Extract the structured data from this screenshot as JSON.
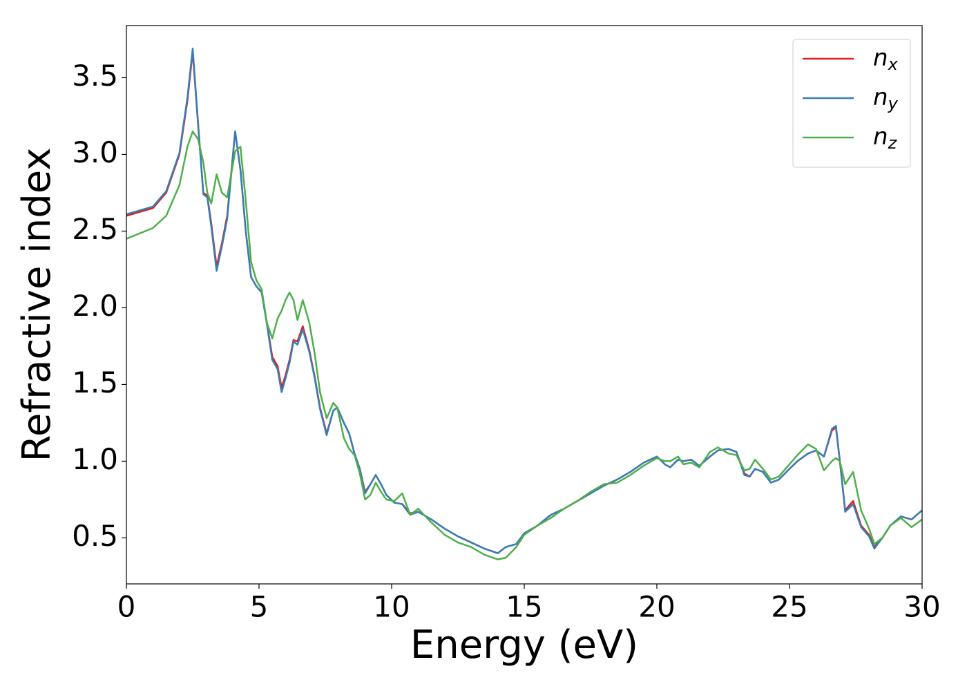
{
  "chart_data": {
    "type": "line",
    "xlabel": "Energy (eV)",
    "ylabel": "Refractive index",
    "x": [
      0,
      1,
      1.5,
      2,
      2.3,
      2.5,
      2.7,
      2.9,
      3.05,
      3.2,
      3.4,
      3.6,
      3.8,
      4.1,
      4.3,
      4.5,
      4.7,
      4.9,
      5.1,
      5.3,
      5.5,
      5.7,
      5.85,
      6,
      6.15,
      6.3,
      6.45,
      6.65,
      6.9,
      7.1,
      7.3,
      7.55,
      7.8,
      7.95,
      8.2,
      8.4,
      8.6,
      8.8,
      9,
      9.2,
      9.4,
      9.6,
      9.8,
      10.1,
      10.4,
      10.7,
      11,
      11.5,
      12,
      12.5,
      13,
      13.5,
      14,
      14.3,
      14.7,
      15,
      15.5,
      16,
      16.5,
      17,
      17.5,
      18,
      18.5,
      19,
      19.5,
      20,
      20.3,
      20.5,
      20.8,
      21,
      21.3,
      21.6,
      22,
      22.3,
      22.7,
      23,
      23.3,
      23.5,
      23.7,
      24,
      24.3,
      24.6,
      25,
      25.3,
      25.7,
      26,
      26.3,
      26.6,
      26.75,
      26.9,
      27.1,
      27.4,
      27.7,
      28,
      28.2,
      28.5,
      28.8,
      29.2,
      29.6,
      30
    ],
    "series": [
      {
        "name": "nx",
        "color": "#e41a1c",
        "values": [
          2.6,
          2.65,
          2.75,
          3.0,
          3.35,
          3.67,
          3.2,
          2.75,
          2.73,
          2.55,
          2.27,
          2.42,
          2.6,
          3.15,
          2.9,
          2.5,
          2.2,
          2.14,
          2.1,
          1.9,
          1.68,
          1.62,
          1.48,
          1.56,
          1.66,
          1.79,
          1.78,
          1.88,
          1.72,
          1.55,
          1.35,
          1.18,
          1.33,
          1.35,
          1.25,
          1.18,
          1.05,
          0.95,
          0.8,
          0.85,
          0.91,
          0.85,
          0.78,
          0.73,
          0.72,
          0.66,
          0.67,
          0.62,
          0.56,
          0.51,
          0.47,
          0.43,
          0.4,
          0.44,
          0.46,
          0.53,
          0.58,
          0.65,
          0.69,
          0.74,
          0.79,
          0.84,
          0.88,
          0.93,
          0.99,
          1.03,
          0.98,
          0.96,
          1.01,
          1.0,
          1.01,
          0.97,
          1.03,
          1.07,
          1.08,
          1.06,
          0.92,
          0.9,
          0.95,
          0.93,
          0.86,
          0.88,
          0.95,
          1.0,
          1.05,
          1.07,
          1.03,
          1.2,
          1.22,
          1.0,
          0.68,
          0.74,
          0.58,
          0.52,
          0.44,
          0.5,
          0.58,
          0.64,
          0.62,
          0.68
        ]
      },
      {
        "name": "ny",
        "color": "#377eb8",
        "values": [
          2.61,
          2.66,
          2.76,
          3.01,
          3.37,
          3.69,
          3.21,
          2.74,
          2.72,
          2.53,
          2.24,
          2.4,
          2.58,
          3.15,
          2.9,
          2.5,
          2.2,
          2.14,
          2.1,
          1.89,
          1.66,
          1.6,
          1.45,
          1.54,
          1.64,
          1.78,
          1.76,
          1.86,
          1.71,
          1.54,
          1.34,
          1.17,
          1.33,
          1.35,
          1.25,
          1.18,
          1.05,
          0.95,
          0.79,
          0.85,
          0.91,
          0.85,
          0.78,
          0.73,
          0.72,
          0.65,
          0.67,
          0.62,
          0.56,
          0.51,
          0.47,
          0.43,
          0.4,
          0.44,
          0.46,
          0.53,
          0.58,
          0.65,
          0.69,
          0.74,
          0.79,
          0.84,
          0.88,
          0.93,
          0.99,
          1.03,
          0.98,
          0.96,
          1.01,
          1.0,
          1.01,
          0.97,
          1.03,
          1.07,
          1.08,
          1.06,
          0.91,
          0.9,
          0.95,
          0.93,
          0.86,
          0.88,
          0.95,
          1.0,
          1.05,
          1.07,
          1.03,
          1.21,
          1.23,
          1.0,
          0.67,
          0.72,
          0.57,
          0.51,
          0.43,
          0.5,
          0.58,
          0.64,
          0.62,
          0.68
        ]
      },
      {
        "name": "nz",
        "color": "#4daf4a",
        "values": [
          2.45,
          2.52,
          2.6,
          2.8,
          3.05,
          3.15,
          3.1,
          2.95,
          2.75,
          2.68,
          2.87,
          2.75,
          2.72,
          3.02,
          3.05,
          2.7,
          2.3,
          2.18,
          2.12,
          1.9,
          1.8,
          1.93,
          1.98,
          2.05,
          2.1,
          2.05,
          1.92,
          2.05,
          1.9,
          1.7,
          1.45,
          1.28,
          1.38,
          1.35,
          1.15,
          1.08,
          1.04,
          0.92,
          0.75,
          0.78,
          0.86,
          0.8,
          0.75,
          0.74,
          0.79,
          0.65,
          0.69,
          0.6,
          0.52,
          0.47,
          0.44,
          0.39,
          0.36,
          0.37,
          0.44,
          0.52,
          0.58,
          0.63,
          0.69,
          0.74,
          0.8,
          0.85,
          0.86,
          0.91,
          0.97,
          1.02,
          1.0,
          1.0,
          1.03,
          0.98,
          0.99,
          0.96,
          1.06,
          1.09,
          1.05,
          1.04,
          0.94,
          0.95,
          1.01,
          0.95,
          0.88,
          0.9,
          0.98,
          1.04,
          1.11,
          1.08,
          0.94,
          1.0,
          1.02,
          1.0,
          0.85,
          0.93,
          0.68,
          0.56,
          0.46,
          0.5,
          0.58,
          0.63,
          0.57,
          0.62
        ]
      }
    ],
    "xlim": [
      0,
      30
    ],
    "xticks": [
      0,
      5,
      10,
      15,
      20,
      25,
      30
    ],
    "ylim": [
      0.2,
      3.84
    ],
    "yticks": [
      0.5,
      {
        "value": 1,
        "label": "1.0"
      },
      1.5,
      {
        "value": 2,
        "label": "2.0"
      },
      2.5,
      {
        "value": 3,
        "label": "3.0"
      },
      3.5
    ],
    "grid": false,
    "legend": "upper right"
  }
}
